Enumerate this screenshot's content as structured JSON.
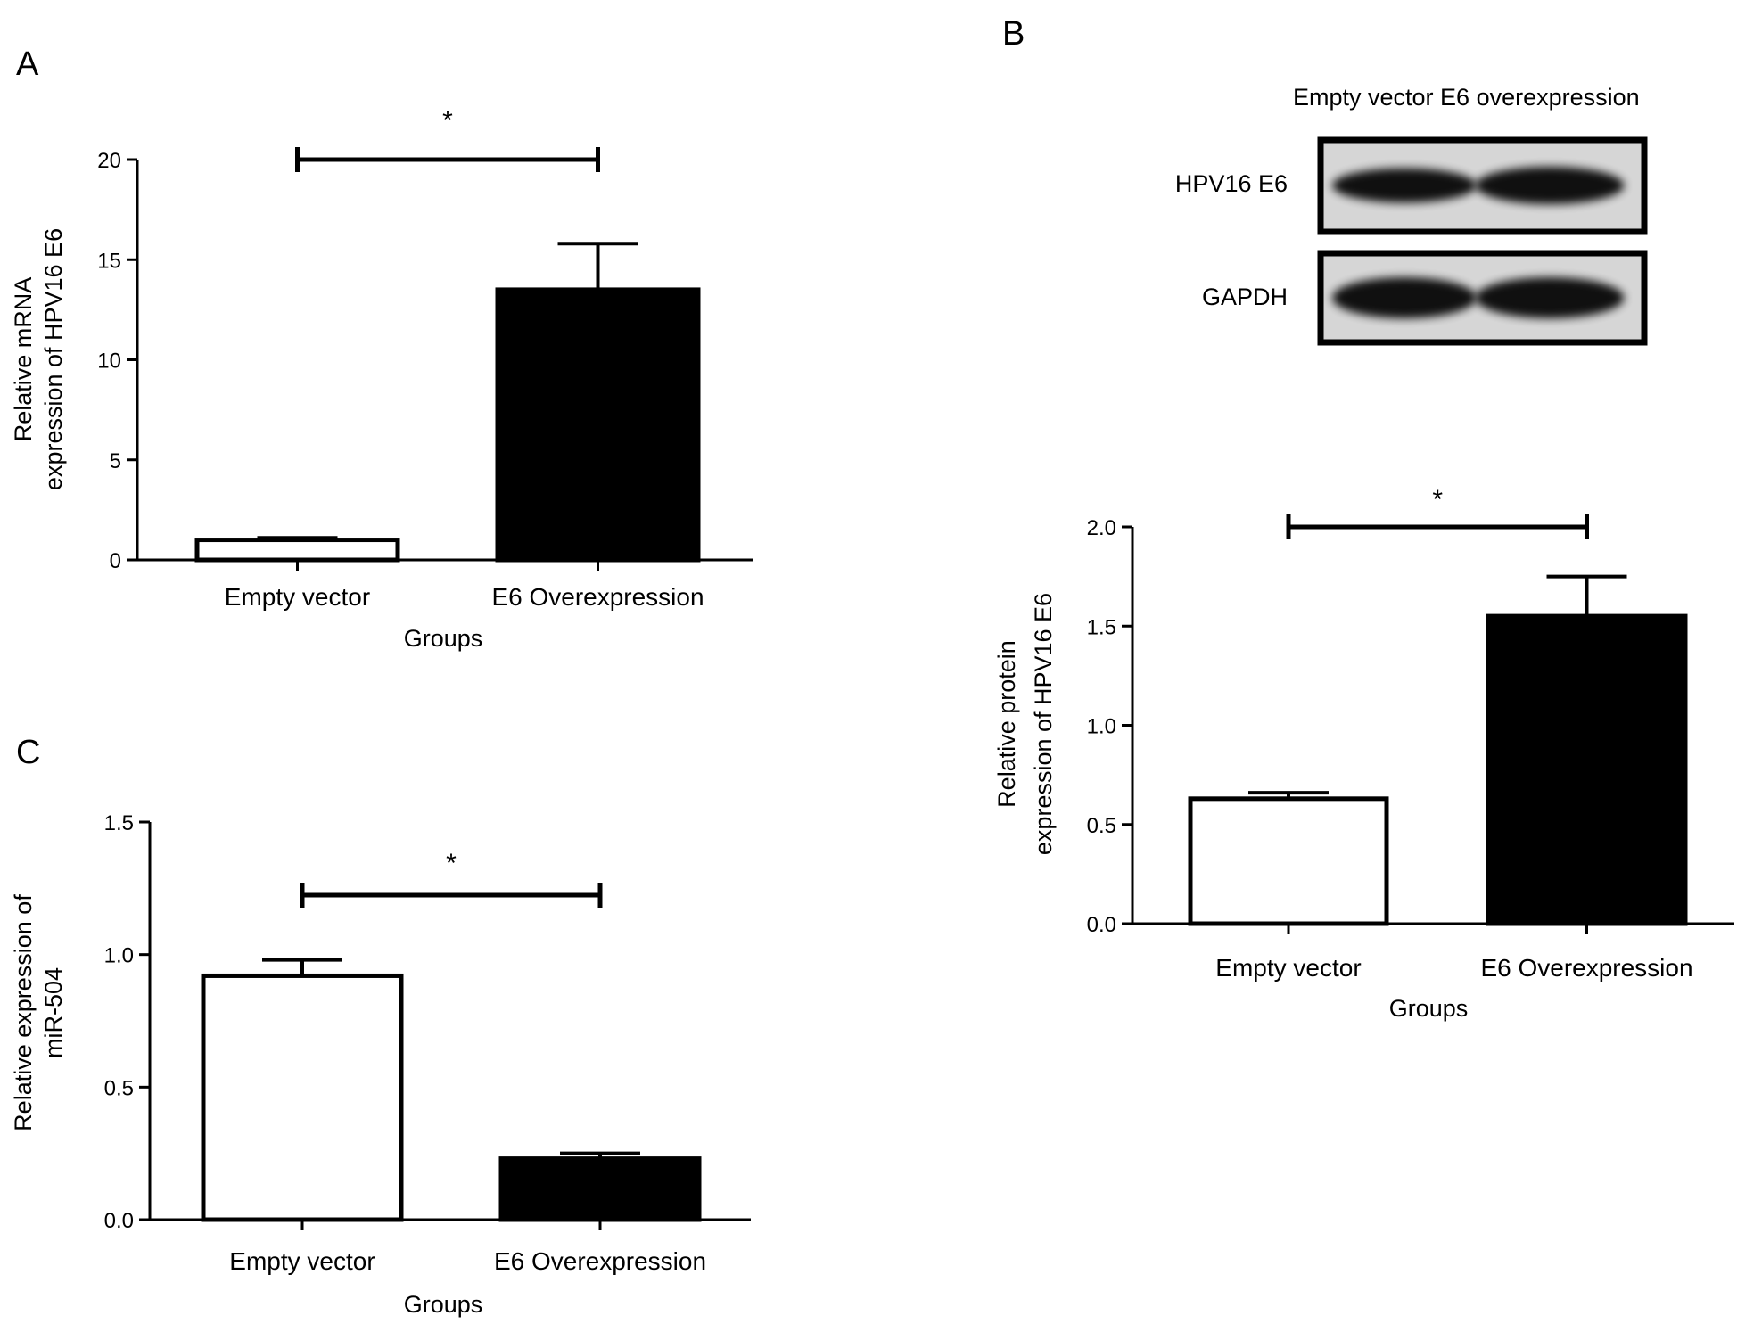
{
  "figure": {
    "panels": [
      {
        "id": "A",
        "letter": "A"
      },
      {
        "id": "B",
        "letter": "B"
      },
      {
        "id": "C",
        "letter": "C"
      }
    ]
  },
  "western_blot": {
    "header": "Empty vector E6 overexpression",
    "rows": [
      {
        "label": "HPV16 E6",
        "band_intensity": [
          0.75,
          1.0
        ]
      },
      {
        "label": "GAPDH",
        "band_intensity": [
          1.0,
          1.0
        ]
      }
    ],
    "lanes": [
      "Empty vector",
      "E6 overexpression"
    ]
  },
  "chart_data": [
    {
      "panel": "A",
      "type": "bar",
      "categories": [
        "Empty vector",
        "E6 Overexpression"
      ],
      "values": [
        1.0,
        13.5
      ],
      "errors": [
        0.1,
        2.3
      ],
      "bar_colors": [
        "#ffffff",
        "#000000"
      ],
      "xlabel": "Groups",
      "ylabel_lines": [
        "Relative mRNA",
        "expression of HPV16 E6"
      ],
      "ylim": [
        0,
        20
      ],
      "yticks": [
        "0",
        "5",
        "10",
        "15",
        "20"
      ],
      "significance": "*",
      "grid": false
    },
    {
      "panel": "B",
      "type": "bar",
      "categories": [
        "Empty vector",
        "E6 Overexpression"
      ],
      "values": [
        0.63,
        1.55
      ],
      "errors": [
        0.03,
        0.2
      ],
      "bar_colors": [
        "#ffffff",
        "#000000"
      ],
      "xlabel": "Groups",
      "ylabel_lines": [
        "Relative protein",
        "expression of HPV16 E6"
      ],
      "ylim": [
        0,
        2.0
      ],
      "yticks": [
        "0.0",
        "0.5",
        "1.0",
        "1.5",
        "2.0"
      ],
      "significance": "*",
      "grid": false
    },
    {
      "panel": "C",
      "type": "bar",
      "categories": [
        "Empty vector",
        "E6 Overexpression"
      ],
      "values": [
        0.92,
        0.23
      ],
      "errors": [
        0.06,
        0.02
      ],
      "bar_colors": [
        "#ffffff",
        "#000000"
      ],
      "xlabel": "Groups",
      "ylabel_lines": [
        "Relative expression of",
        "miR-504"
      ],
      "ylim": [
        0,
        1.5
      ],
      "yticks": [
        "0.0",
        "0.5",
        "1.0",
        "1.5"
      ],
      "significance": "*",
      "grid": false
    }
  ]
}
